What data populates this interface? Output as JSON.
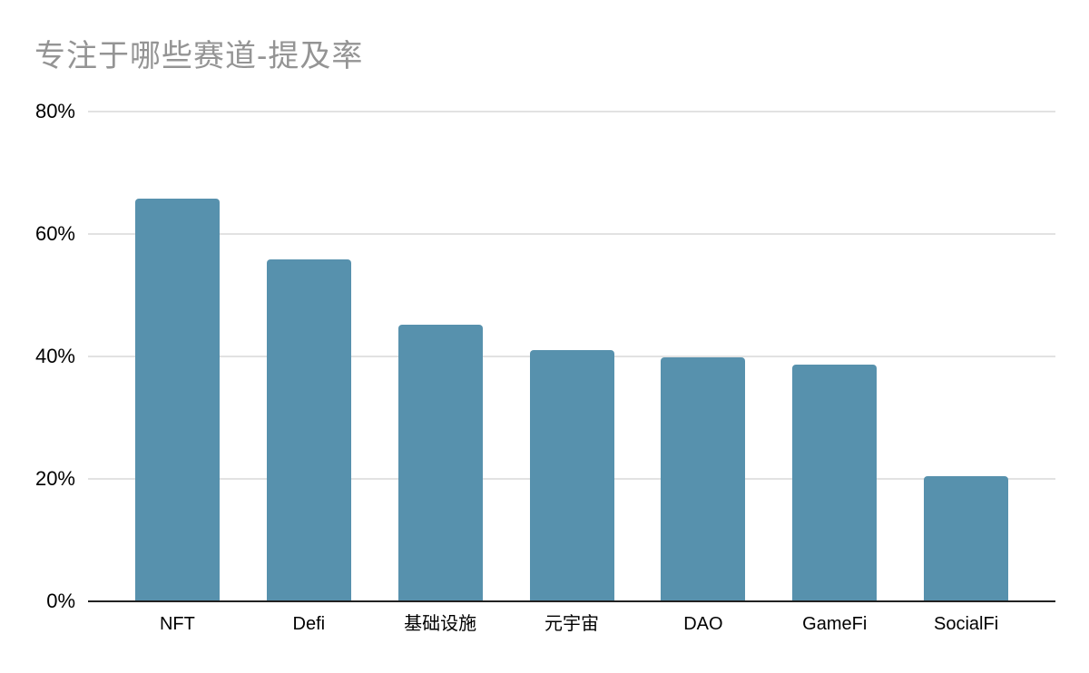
{
  "chart_data": {
    "type": "bar",
    "title": "专注于哪些赛道-提及率",
    "categories": [
      "NFT",
      "Defi",
      "基础设施",
      "元宇宙",
      "DAO",
      "GameFi",
      "SocialFi"
    ],
    "values": [
      65.8,
      55.9,
      45.2,
      41.1,
      39.9,
      38.7,
      20.5
    ],
    "unit": "%",
    "xlabel": "",
    "ylabel": "",
    "ylim": [
      0,
      80
    ],
    "yticks": [
      {
        "value": 0,
        "label": "0%"
      },
      {
        "value": 20,
        "label": "20%"
      },
      {
        "value": 40,
        "label": "40%"
      },
      {
        "value": 60,
        "label": "60%"
      },
      {
        "value": 80,
        "label": "80%"
      }
    ],
    "grid": true,
    "legend": false,
    "layout": {
      "legend_position": "none",
      "bar_corner_radius": 4
    },
    "colors": {
      "bar": "#5791AD",
      "title_text": "#949494",
      "axis_text": "#000000",
      "gridline": "#e2e2e2",
      "axis_line": "#212121",
      "background": "#ffffff"
    }
  }
}
